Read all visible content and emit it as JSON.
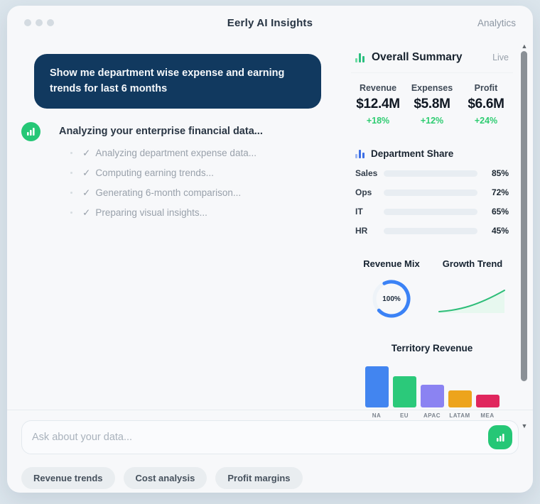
{
  "window": {
    "title": "Eerly AI Insights",
    "nav_right": "Analytics"
  },
  "chat": {
    "user_message": "Show me department wise expense and earning trends for last 6 months",
    "ai": {
      "heading": "Analyzing your enterprise financial data...",
      "check": "✓",
      "steps": [
        "Analyzing department expense data...",
        "Computing earning trends...",
        "Generating 6-month comparison...",
        "Preparing visual insights..."
      ]
    }
  },
  "panel": {
    "title": "Overall Summary",
    "live_badge": "Live",
    "stats": [
      {
        "label": "Revenue",
        "value": "$12.4M",
        "delta": "+18%"
      },
      {
        "label": "Expenses",
        "value": "$5.8M",
        "delta": "+12%"
      },
      {
        "label": "Profit",
        "value": "$6.6M",
        "delta": "+24%"
      }
    ],
    "department_share": {
      "title": "Department Share",
      "chart_type": "bar",
      "rows": [
        {
          "label": "Sales",
          "pct": "85%",
          "value": 85,
          "color": "#4478e8"
        },
        {
          "label": "Ops",
          "pct": "72%",
          "value": 72,
          "color": "#2dcc7a"
        },
        {
          "label": "IT",
          "pct": "65%",
          "value": 65,
          "color": "#8c85ee"
        },
        {
          "label": "HR",
          "pct": "45%",
          "value": 45,
          "color": "#f0a224"
        }
      ]
    },
    "revenue_mix": {
      "title": "Revenue Mix",
      "chart_type": "donut",
      "center_label": "100%",
      "arc_pct": 70,
      "arc_color": "#3b82f6"
    },
    "growth_trend": {
      "title": "Growth Trend",
      "chart_type": "area",
      "line_color": "#2dbd78"
    },
    "territory": {
      "title": "Territory Revenue",
      "chart_type": "bar",
      "bars": [
        {
          "label": "NA",
          "value": 100,
          "color": "#4285f0"
        },
        {
          "label": "EU",
          "value": 76,
          "color": "#2bc97a"
        },
        {
          "label": "APAC",
          "value": 55,
          "color": "#8b83f2"
        },
        {
          "label": "LATAM",
          "value": 42,
          "color": "#eda41c"
        },
        {
          "label": "MEA",
          "value": 31,
          "color": "#e0275e"
        }
      ]
    }
  },
  "composer": {
    "placeholder": "Ask about your data...",
    "chips": [
      "Revenue trends",
      "Cost analysis",
      "Profit margins"
    ]
  },
  "colors": {
    "accent_green": "#25c776",
    "bubble_navy": "#11395f",
    "delta_green": "#2ecc71"
  }
}
